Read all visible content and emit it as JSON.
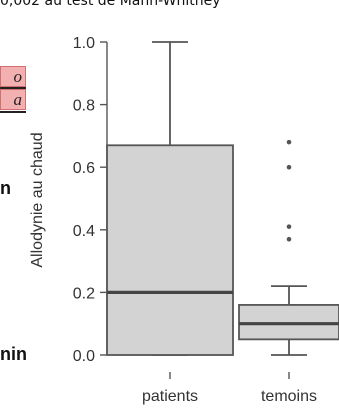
{
  "top_text": "0,002 au test de Mann-Whitney",
  "left_fragments": [
    "o",
    "a",
    "n",
    "nin"
  ],
  "chart_data": {
    "type": "box",
    "ylabel": "Allodynie au chaud",
    "ylim": [
      0,
      1
    ],
    "yticks": [
      "0.0",
      "0.2",
      "0.4",
      "0.6",
      "0.8",
      "1.0"
    ],
    "categories": [
      "patients",
      "temoins"
    ],
    "boxes": [
      {
        "category": "patients",
        "min": 0.0,
        "q1": 0.0,
        "median": 0.2,
        "q3": 0.67,
        "max": 1.0,
        "outliers": []
      },
      {
        "category": "temoins",
        "min": 0.0,
        "q1": 0.05,
        "median": 0.1,
        "q3": 0.16,
        "max": 0.22,
        "outliers": [
          0.37,
          0.41,
          0.6,
          0.68
        ]
      }
    ],
    "box_color": "#d3d3d3",
    "grid": false
  }
}
